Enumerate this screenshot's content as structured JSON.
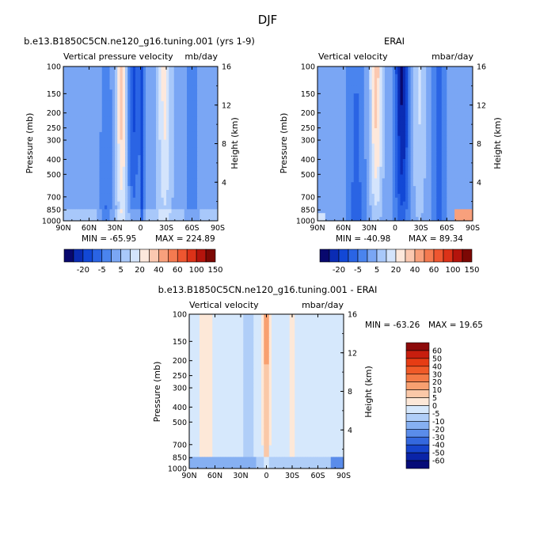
{
  "page": {
    "title": "DJF"
  },
  "shared": {
    "x_ticks": [
      "90N",
      "60N",
      "30N",
      "0",
      "30S",
      "60S",
      "90S"
    ],
    "p_ticks": [
      "100",
      "150",
      "200",
      "250",
      "300",
      "400",
      "500",
      "700",
      "850",
      "1000"
    ],
    "h_ticks": [
      "16",
      "12",
      "8",
      "4"
    ],
    "ylabel_left": "Pressure (mb)",
    "ylabel_right": "Height (km)"
  },
  "chart_data": [
    {
      "type": "heatmap",
      "id": "model",
      "case_title": "b.e13.B1850C5CN.ne120_g16.tuning.001 (yrs 1-9)",
      "subtitle_left": "Vertical pressure velocity",
      "units": "mb/day",
      "x": [
        "90N",
        "60N",
        "30N",
        "0",
        "30S",
        "60S",
        "90S"
      ],
      "y_pressure": [
        100,
        150,
        200,
        250,
        300,
        400,
        500,
        700,
        850,
        1000
      ],
      "height_km": [
        16,
        12,
        8,
        4
      ],
      "min_label": "MIN = -65.95",
      "max_label": "MAX = 224.89",
      "min": -65.95,
      "max": 224.89,
      "colorbar_labels": [
        "-20",
        "-5",
        "5",
        "20",
        "40",
        "60",
        "100",
        "150"
      ],
      "colorbar_colors": [
        "#08086e",
        "#0a2cb4",
        "#1248d6",
        "#2a64e4",
        "#4a84ee",
        "#7aa6f4",
        "#a8c8fa",
        "#d4e4fc",
        "#fde8dc",
        "#fbc8b0",
        "#f8a07c",
        "#f47a50",
        "#ee5630",
        "#dc3218",
        "#b4140c",
        "#7c0804"
      ]
    },
    {
      "type": "heatmap",
      "id": "obs",
      "case_title": "ERAI",
      "subtitle_left": "Vertical velocity",
      "units": "mbar/day",
      "x": [
        "90N",
        "60N",
        "30N",
        "0",
        "30S",
        "60S",
        "90S"
      ],
      "y_pressure": [
        100,
        150,
        200,
        250,
        300,
        400,
        500,
        700,
        850,
        1000
      ],
      "height_km": [
        16,
        12,
        8,
        4
      ],
      "min_label": "MIN = -40.98",
      "max_label": "MAX = 89.34",
      "min": -40.98,
      "max": 89.34,
      "colorbar_labels": [
        "-20",
        "-5",
        "5",
        "20",
        "40",
        "60",
        "100",
        "150"
      ],
      "colorbar_colors": [
        "#08086e",
        "#0a2cb4",
        "#1248d6",
        "#2a64e4",
        "#4a84ee",
        "#7aa6f4",
        "#a8c8fa",
        "#d4e4fc",
        "#fde8dc",
        "#fbc8b0",
        "#f8a07c",
        "#f47a50",
        "#ee5630",
        "#dc3218",
        "#b4140c",
        "#7c0804"
      ]
    },
    {
      "type": "heatmap",
      "id": "diff",
      "case_title": "b.e13.B1850C5CN.ne120_g16.tuning.001 - ERAI",
      "subtitle_left": "Vertical velocity",
      "units": "mbar/day",
      "x": [
        "90N",
        "60N",
        "30N",
        "0",
        "30S",
        "60S",
        "90S"
      ],
      "y_pressure": [
        100,
        150,
        200,
        250,
        300,
        400,
        500,
        700,
        850,
        1000
      ],
      "height_km": [
        16,
        12,
        8,
        4
      ],
      "min_label": "MIN = -63.26",
      "max_label": "MAX = 19.65",
      "min": -63.26,
      "max": 19.65,
      "colorbar_labels": [
        "60",
        "50",
        "40",
        "30",
        "20",
        "10",
        "5",
        "0",
        "-5",
        "-10",
        "-20",
        "-30",
        "-40",
        "-50",
        "-60"
      ],
      "colorbar_colors": [
        "#8c0a0a",
        "#c81e0e",
        "#e63c14",
        "#f05a28",
        "#f47a46",
        "#f8a070",
        "#fac8a8",
        "#fde8d8",
        "#d6e8fc",
        "#b0cef8",
        "#86b0f2",
        "#5a8cea",
        "#3468de",
        "#1644cc",
        "#0a24a8",
        "#060c78"
      ]
    }
  ]
}
